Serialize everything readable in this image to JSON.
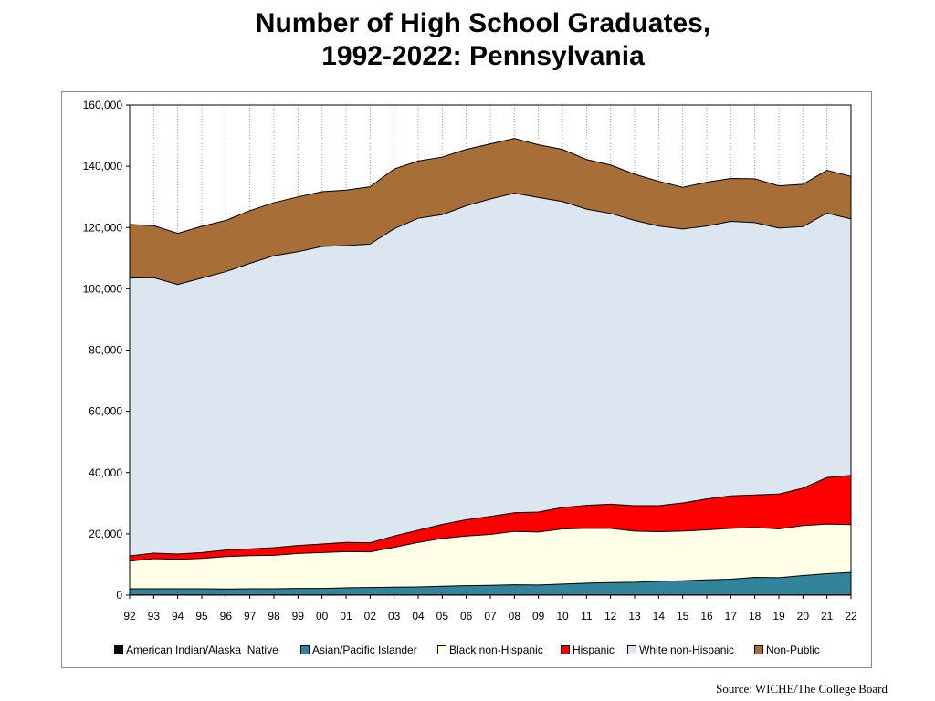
{
  "title": {
    "line1": "Number of High School Graduates,",
    "line2": "1992-2022:  Pennsylvania"
  },
  "source": "Source: WICHE/The College Board",
  "chart_data": {
    "type": "area",
    "stacked": true,
    "categories": [
      "92",
      "93",
      "94",
      "95",
      "96",
      "97",
      "98",
      "99",
      "00",
      "01",
      "02",
      "03",
      "04",
      "05",
      "06",
      "07",
      "08",
      "09",
      "10",
      "11",
      "12",
      "13",
      "14",
      "15",
      "16",
      "17",
      "18",
      "19",
      "20",
      "21",
      "22"
    ],
    "ylim": [
      0,
      160000
    ],
    "yticks": [
      0,
      20000,
      40000,
      60000,
      80000,
      100000,
      120000,
      140000,
      160000
    ],
    "ytick_labels": [
      "0",
      "20,000",
      "40,000",
      "60,000",
      "80,000",
      "100,000",
      "120,000",
      "140,000",
      "160,000"
    ],
    "grid": "vertical dotted",
    "legend_position": "bottom",
    "series": [
      {
        "name": "American Indian/Alaska  Native",
        "color": "#000000",
        "values": [
          100,
          100,
          100,
          100,
          100,
          100,
          100,
          100,
          100,
          100,
          100,
          100,
          100,
          100,
          100,
          100,
          100,
          100,
          100,
          100,
          100,
          100,
          100,
          100,
          100,
          100,
          100,
          100,
          100,
          100,
          100
        ]
      },
      {
        "name": "Asian/Pacific Islander",
        "color": "#31849b",
        "values": [
          2000,
          2000,
          2000,
          2000,
          1900,
          2000,
          2000,
          2100,
          2100,
          2300,
          2400,
          2500,
          2600,
          2800,
          3000,
          3100,
          3300,
          3200,
          3500,
          3800,
          4000,
          4100,
          4400,
          4600,
          4900,
          5100,
          5700,
          5600,
          6300,
          6900,
          7300
        ]
      },
      {
        "name": "Black non-Hispanic",
        "color": "#ffffe8",
        "values": [
          9000,
          9800,
          9600,
          9900,
          10600,
          10800,
          10900,
          11400,
          11700,
          11800,
          11600,
          13000,
          14500,
          15600,
          16200,
          16600,
          17400,
          17300,
          18000,
          17900,
          17700,
          16700,
          16200,
          16200,
          16300,
          16600,
          16300,
          15900,
          16300,
          16200,
          15600
        ]
      },
      {
        "name": "Hispanic",
        "color": "#ff0000",
        "values": [
          1700,
          1800,
          1700,
          1900,
          2100,
          2200,
          2500,
          2600,
          2800,
          3000,
          3000,
          3700,
          4000,
          4600,
          5300,
          5900,
          6100,
          6500,
          7000,
          7500,
          7900,
          8300,
          8500,
          9200,
          10100,
          10600,
          10600,
          11400,
          12200,
          15200,
          16100
        ]
      },
      {
        "name": "White non-Hispanic",
        "color": "#dce6f1",
        "values": [
          90700,
          89900,
          88000,
          89600,
          90900,
          93200,
          95300,
          95900,
          97100,
          96900,
          97500,
          100300,
          101800,
          101100,
          102500,
          103600,
          104300,
          102700,
          99900,
          96700,
          94900,
          93100,
          91300,
          89400,
          89100,
          89600,
          88900,
          86800,
          85400,
          86300,
          83700
        ]
      },
      {
        "name": "Non-Public",
        "color": "#a86e38",
        "values": [
          17500,
          17000,
          16700,
          16900,
          16700,
          17200,
          17300,
          17900,
          17900,
          18100,
          18700,
          19500,
          18700,
          18800,
          18400,
          18000,
          17900,
          17200,
          17000,
          16200,
          15800,
          15100,
          14600,
          13600,
          14300,
          14000,
          14300,
          13800,
          13800,
          14000,
          13900
        ]
      }
    ]
  }
}
